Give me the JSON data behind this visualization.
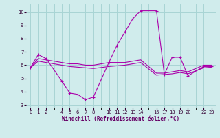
{
  "xlabel": "Windchill (Refroidissement éolien,°C)",
  "background_color": "#d0ecec",
  "grid_color": "#a8d4d4",
  "line_color": "#aa00aa",
  "xlim": [
    -0.5,
    23.5
  ],
  "ylim": [
    2.8,
    10.6
  ],
  "xticks": [
    0,
    1,
    2,
    4,
    5,
    6,
    7,
    8,
    10,
    11,
    12,
    13,
    14,
    16,
    17,
    18,
    19,
    20,
    22,
    23
  ],
  "yticks": [
    3,
    4,
    5,
    6,
    7,
    8,
    9,
    10
  ],
  "all_xticks": [
    0,
    1,
    2,
    3,
    4,
    5,
    6,
    7,
    8,
    9,
    10,
    11,
    12,
    13,
    14,
    15,
    16,
    17,
    18,
    19,
    20,
    21,
    22,
    23
  ],
  "line1_x": [
    0,
    1,
    2,
    4,
    5,
    6,
    7,
    8,
    10,
    11,
    12,
    13,
    14,
    16,
    17,
    18,
    19,
    20,
    22,
    23
  ],
  "line1_y": [
    5.8,
    6.8,
    6.5,
    4.8,
    3.9,
    3.8,
    3.4,
    3.6,
    6.25,
    7.5,
    8.5,
    9.5,
    10.1,
    10.1,
    5.3,
    6.6,
    6.6,
    5.2,
    5.9,
    5.9
  ],
  "line2_x": [
    0,
    1,
    2,
    4,
    5,
    6,
    7,
    8,
    10,
    11,
    12,
    13,
    14,
    16,
    17,
    18,
    19,
    20,
    22,
    23
  ],
  "line2_y": [
    5.8,
    6.5,
    6.4,
    6.2,
    6.1,
    6.1,
    6.0,
    6.0,
    6.2,
    6.2,
    6.2,
    6.3,
    6.4,
    5.4,
    5.4,
    5.5,
    5.6,
    5.5,
    6.0,
    6.0
  ],
  "line3_x": [
    0,
    1,
    2,
    4,
    5,
    6,
    7,
    8,
    10,
    11,
    12,
    13,
    14,
    16,
    17,
    18,
    19,
    20,
    22,
    23
  ],
  "line3_y": [
    5.8,
    6.3,
    6.2,
    6.0,
    5.9,
    5.85,
    5.8,
    5.75,
    5.9,
    5.95,
    6.0,
    6.1,
    6.2,
    5.25,
    5.3,
    5.35,
    5.45,
    5.35,
    5.8,
    5.85
  ]
}
